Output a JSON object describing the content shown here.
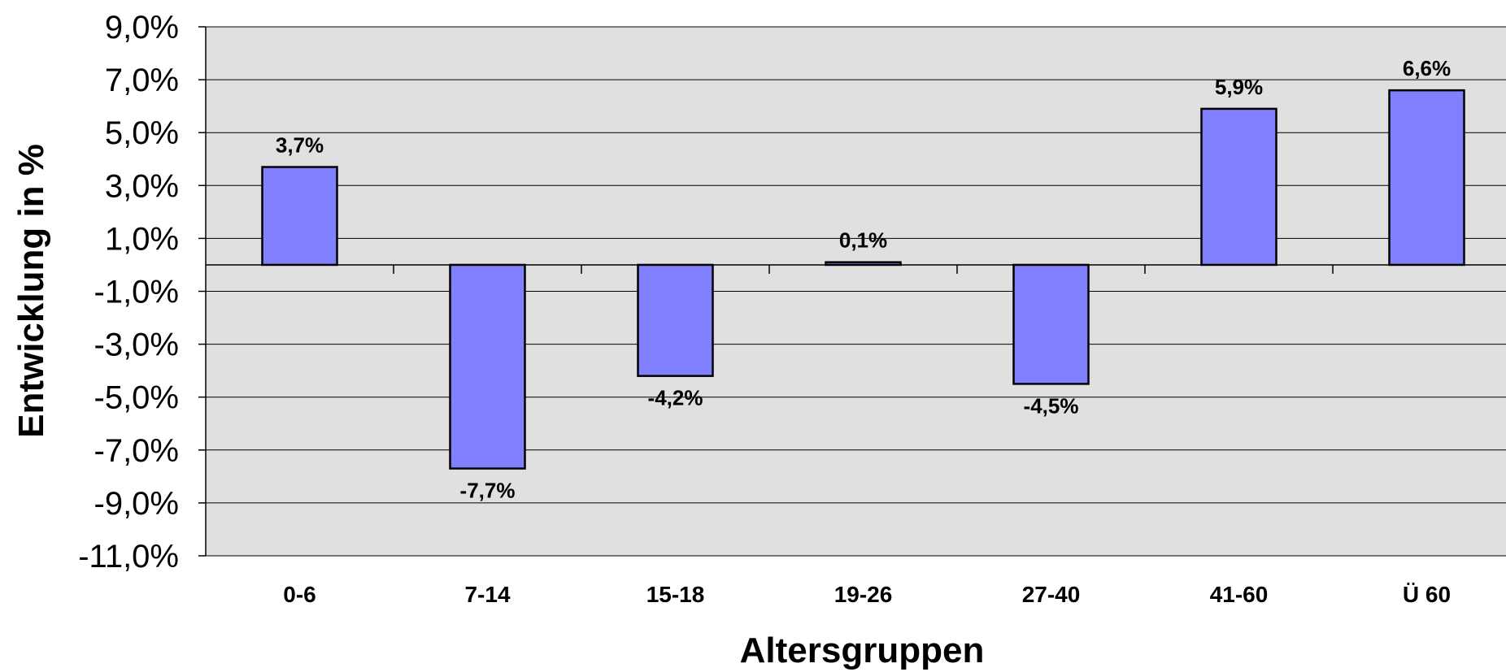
{
  "chart_data": {
    "type": "bar",
    "title": "",
    "xlabel": "Altersgruppen",
    "ylabel": "Entwicklung in %",
    "categories": [
      "0-6",
      "7-14",
      "15-18",
      "19-26",
      "27-40",
      "41-60",
      "Ü 60"
    ],
    "values": [
      3.7,
      -7.7,
      -4.2,
      0.1,
      -4.5,
      5.9,
      6.6
    ],
    "value_labels": [
      "3,7%",
      "-7,7%",
      "-4,2%",
      "0,1%",
      "-4,5%",
      "5,9%",
      "6,6%"
    ],
    "ylim": [
      -11,
      9
    ],
    "y_ticks": [
      9,
      7,
      5,
      3,
      1,
      -1,
      -3,
      -5,
      -7,
      -9,
      -11
    ],
    "y_tick_labels": [
      "9,0%",
      "7,0%",
      "5,0%",
      "3,0%",
      "1,0%",
      "-1,0%",
      "-3,0%",
      "-5,0%",
      "-7,0%",
      "-9,0%",
      "-11,0%"
    ],
    "grid": true,
    "legend": "none",
    "colors": {
      "bar_fill": "#8080ff",
      "bar_stroke": "#000000",
      "plot_background": "#e0e0e0",
      "gridline": "#000000"
    }
  }
}
